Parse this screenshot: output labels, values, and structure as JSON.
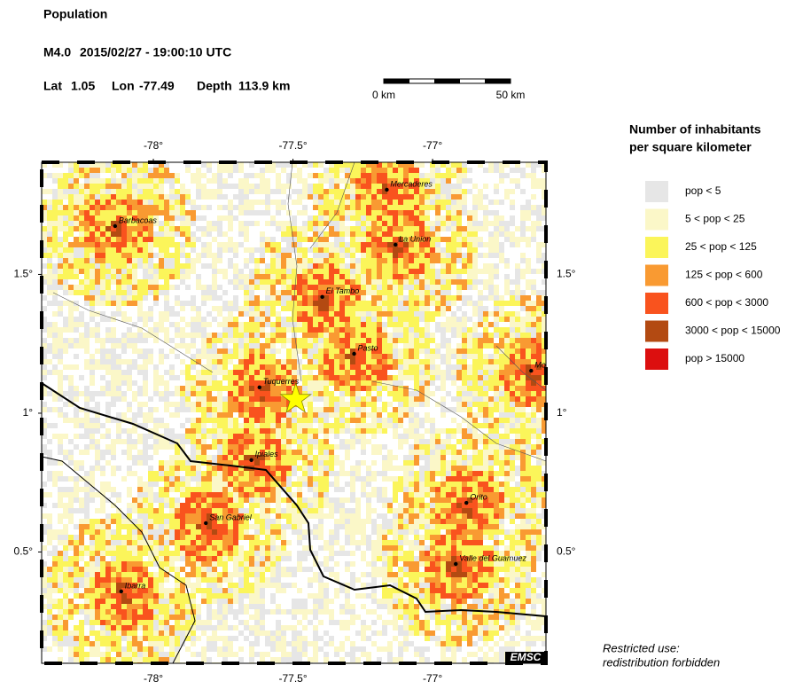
{
  "chart_data": {
    "type": "map",
    "title": "Population",
    "event": {
      "magnitude": "M4.0",
      "time": "2015/02/27 - 19:00:10 UTC",
      "lat_label": "Lat",
      "lat": 1.05,
      "lon_label": "Lon",
      "lon": -77.49,
      "depth_label": "Depth",
      "depth": "113.9 km"
    },
    "scale_bar": {
      "start": "0 km",
      "end": "50 km"
    },
    "xlim": [
      -78.4,
      -76.594
    ],
    "ylim": [
      0.099,
      1.904
    ],
    "xticks": [
      {
        "value": -78,
        "label": "-78°"
      },
      {
        "value": -77.5,
        "label": "-77.5°"
      },
      {
        "value": -77,
        "label": "-77°"
      }
    ],
    "yticks": [
      {
        "value": 0.5,
        "label": "0.5°"
      },
      {
        "value": 1,
        "label": "1°"
      },
      {
        "value": 1.5,
        "label": "1.5°"
      }
    ],
    "cities": [
      {
        "name": "Barbacoas",
        "lon": -78.137,
        "lat": 1.674
      },
      {
        "name": "Mercaderes",
        "lon": -77.164,
        "lat": 1.805
      },
      {
        "name": "La Union",
        "lon": -77.133,
        "lat": 1.607
      },
      {
        "name": "El Tambo",
        "lon": -77.395,
        "lat": 1.419
      },
      {
        "name": "Pasto",
        "lon": -77.281,
        "lat": 1.214
      },
      {
        "name": "Mo",
        "lon": -76.647,
        "lat": 1.153
      },
      {
        "name": "Tuquerres",
        "lon": -77.62,
        "lat": 1.093
      },
      {
        "name": "Ipiales",
        "lon": -77.649,
        "lat": 0.831
      },
      {
        "name": "Orito",
        "lon": -76.879,
        "lat": 0.677
      },
      {
        "name": "San Gabriel",
        "lon": -77.812,
        "lat": 0.604
      },
      {
        "name": "Valle del Guamuez",
        "lon": -76.917,
        "lat": 0.457
      },
      {
        "name": "Ibarra",
        "lon": -78.115,
        "lat": 0.358
      }
    ],
    "legend": {
      "title": [
        "Number of inhabitants",
        "per square kilometer"
      ],
      "items": [
        {
          "name": "pop < 5",
          "color": "#e6e6e6"
        },
        {
          "name": "5 < pop < 25",
          "color": "#fbf7c8"
        },
        {
          "name": "25 < pop < 125",
          "color": "#fbf55a"
        },
        {
          "name": "125 < pop < 600",
          "color": "#f99a32"
        },
        {
          "name": "600 < pop < 3000",
          "color": "#f9531e"
        },
        {
          "name": "3000 < pop < 15000",
          "color": "#b34a12"
        },
        {
          "name": "pop > 15000",
          "color": "#dc0f0f"
        }
      ]
    },
    "notes": [
      "Restricted use:",
      "redistribution forbidden"
    ],
    "credit": "EMSC"
  }
}
